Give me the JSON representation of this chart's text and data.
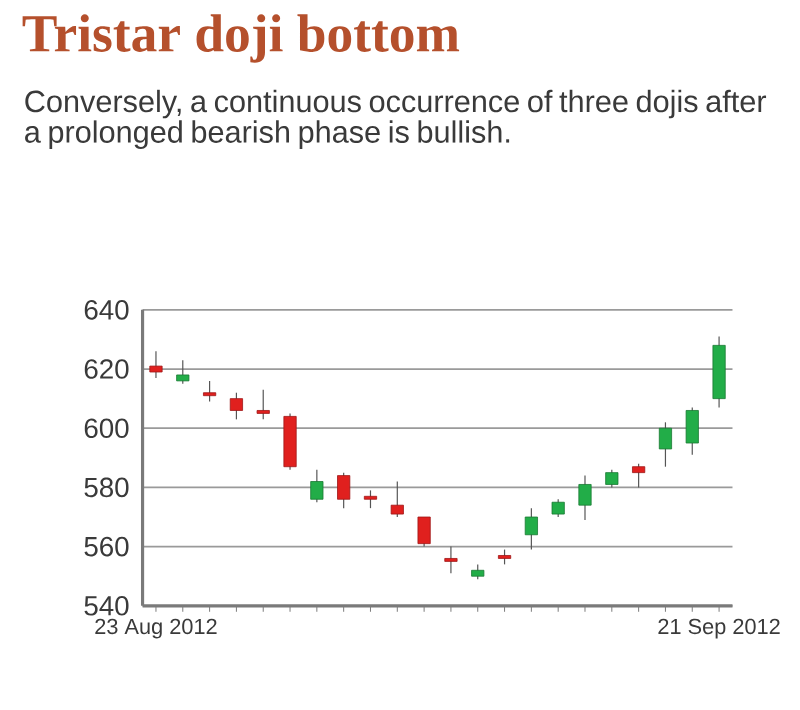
{
  "chart_data": {
    "type": "candlestick",
    "title": "Tristar doji bottom",
    "subtitle": "Conversely, a continuous occurrence of three dojis after a prolonged bearish phase is bullish.",
    "categories": [
      "23 Aug 2012",
      null,
      null,
      null,
      null,
      null,
      null,
      null,
      null,
      null,
      null,
      null,
      null,
      null,
      null,
      null,
      null,
      null,
      null,
      null,
      null,
      "21 Sep 2012"
    ],
    "ohlc": [
      [
        621,
        626,
        617,
        619
      ],
      [
        616,
        623,
        615,
        618
      ],
      [
        612,
        616,
        609,
        611
      ],
      [
        610,
        612,
        603,
        606
      ],
      [
        606,
        613,
        603,
        605
      ],
      [
        604,
        605,
        586,
        587
      ],
      [
        576,
        586,
        575,
        582
      ],
      [
        584,
        585,
        573,
        576
      ],
      [
        577,
        579,
        573,
        576
      ],
      [
        574,
        582,
        570,
        571
      ],
      [
        570,
        570,
        560,
        561
      ],
      [
        556,
        560,
        551,
        555
      ],
      [
        550,
        554,
        549,
        552
      ],
      [
        557,
        559,
        554,
        556
      ],
      [
        564,
        573,
        559,
        570
      ],
      [
        571,
        576,
        570,
        575
      ],
      [
        574,
        584,
        569,
        581
      ],
      [
        581,
        586,
        580,
        585
      ],
      [
        587,
        588,
        580,
        585
      ],
      [
        593,
        602,
        587,
        600
      ],
      [
        595,
        607,
        591,
        606
      ],
      [
        610,
        631,
        607,
        628
      ]
    ],
    "colors": [
      "#e0201e",
      "#22ad48",
      "#e0201e",
      "#e0201e",
      "#e0201e",
      "#e0201e",
      "#22ad48",
      "#e0201e",
      "#e0201e",
      "#e0201e",
      "#e0201e",
      "#e0201e",
      "#22ad48",
      "#e0201e",
      "#22ad48",
      "#22ad48",
      "#22ad48",
      "#22ad48",
      "#e0201e",
      "#22ad48",
      "#22ad48",
      "#22ad48"
    ],
    "ylim": [
      540,
      640
    ],
    "yticks": [
      540,
      560,
      580,
      600,
      620,
      640
    ],
    "grid": "y"
  }
}
